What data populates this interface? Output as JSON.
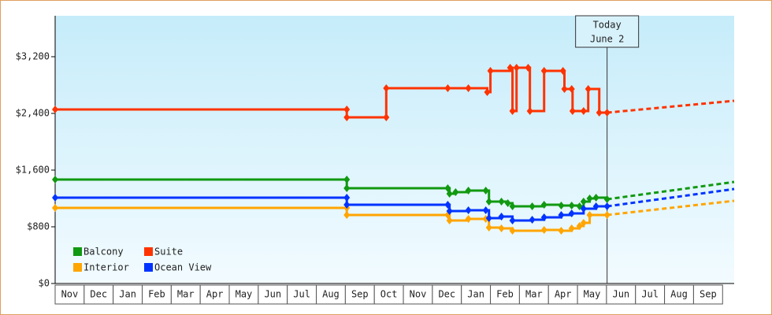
{
  "chart_data": {
    "type": "step-line",
    "xlim": [
      0,
      23.4
    ],
    "xticks": [
      {
        "value": 0.5,
        "label": "Nov"
      },
      {
        "value": 1.5,
        "label": "Dec"
      },
      {
        "value": 2.5,
        "label": "Jan"
      },
      {
        "value": 3.5,
        "label": "Feb"
      },
      {
        "value": 4.5,
        "label": "Mar"
      },
      {
        "value": 5.5,
        "label": "Apr"
      },
      {
        "value": 6.5,
        "label": "May"
      },
      {
        "value": 7.5,
        "label": "Jun"
      },
      {
        "value": 8.5,
        "label": "Jul"
      },
      {
        "value": 9.5,
        "label": "Aug"
      },
      {
        "value": 10.5,
        "label": "Sep"
      },
      {
        "value": 11.5,
        "label": "Oct"
      },
      {
        "value": 12.5,
        "label": "Nov"
      },
      {
        "value": 13.5,
        "label": "Dec"
      },
      {
        "value": 14.5,
        "label": "Jan"
      },
      {
        "value": 15.5,
        "label": "Feb"
      },
      {
        "value": 16.5,
        "label": "Mar"
      },
      {
        "value": 17.5,
        "label": "Apr"
      },
      {
        "value": 18.5,
        "label": "May"
      },
      {
        "value": 19.5,
        "label": "Jun"
      },
      {
        "value": 20.5,
        "label": "Jul"
      },
      {
        "value": 21.5,
        "label": "Aug"
      },
      {
        "value": 22.5,
        "label": "Sep"
      }
    ],
    "ylim": [
      0,
      3778
    ],
    "yticks": [
      {
        "value": 0,
        "label": "$0"
      },
      {
        "value": 800,
        "label": "$800"
      },
      {
        "value": 1600,
        "label": "$1,600"
      },
      {
        "value": 2400,
        "label": "$2,400"
      },
      {
        "value": 3200,
        "label": "$3,200"
      }
    ],
    "annotation": {
      "x": 19.02,
      "lines": [
        "Today",
        "June 2"
      ]
    },
    "series": [
      {
        "name": "Balcony",
        "color": "#119911",
        "x": [
          0,
          10.05,
          10.05,
          13.53,
          13.59,
          13.8,
          14.24,
          14.84,
          14.95,
          15.38,
          15.6,
          15.76,
          16.44,
          16.85,
          17.44,
          17.8,
          18.07,
          18.21,
          18.42,
          18.64,
          19.02
        ],
        "values": [
          1467,
          1467,
          1344,
          1344,
          1267,
          1289,
          1311,
          1311,
          1156,
          1156,
          1133,
          1089,
          1089,
          1111,
          1100,
          1100,
          1089,
          1156,
          1200,
          1211,
          1189
        ],
        "forecast": {
          "x": [
            19.02,
            23.4
          ],
          "values": [
            1189,
            1433
          ]
        }
      },
      {
        "name": "Suite",
        "color": "#ff3300",
        "x": [
          0,
          10.05,
          10.05,
          11.41,
          11.41,
          13.53,
          14.24,
          14.89,
          15.0,
          15.68,
          15.76,
          15.9,
          16.3,
          16.36,
          16.85,
          17.5,
          17.55,
          17.8,
          17.83,
          18.21,
          18.37,
          18.75,
          19.02
        ],
        "values": [
          2456,
          2456,
          2344,
          2344,
          2756,
          2756,
          2756,
          2700,
          3000,
          3044,
          2433,
          3044,
          3044,
          2433,
          3000,
          3000,
          2744,
          2744,
          2433,
          2433,
          2744,
          2411,
          2411
        ],
        "forecast": {
          "x": [
            19.02,
            23.4
          ],
          "values": [
            2411,
            2578
          ]
        }
      },
      {
        "name": "Interior",
        "color": "#ffa500",
        "x": [
          0,
          10.05,
          10.05,
          13.53,
          13.59,
          14.24,
          14.84,
          14.95,
          15.38,
          15.76,
          16.85,
          17.44,
          17.8,
          18.07,
          18.21,
          18.42,
          19.02
        ],
        "values": [
          1067,
          1067,
          967,
          967,
          889,
          911,
          911,
          789,
          778,
          744,
          756,
          744,
          778,
          811,
          856,
          967,
          967
        ],
        "forecast": {
          "x": [
            19.02,
            23.4
          ],
          "values": [
            967,
            1167
          ]
        }
      },
      {
        "name": "Ocean View",
        "color": "#0033ff",
        "x": [
          0,
          10.05,
          10.05,
          13.53,
          13.59,
          14.24,
          14.84,
          14.95,
          15.38,
          15.76,
          16.44,
          16.85,
          17.44,
          17.8,
          18.21,
          18.64,
          19.02
        ],
        "values": [
          1211,
          1211,
          1111,
          1111,
          1022,
          1033,
          1033,
          922,
          944,
          889,
          900,
          933,
          967,
          989,
          1056,
          1089,
          1089
        ],
        "forecast": {
          "x": [
            19.02,
            23.4
          ],
          "values": [
            1089,
            1333
          ]
        }
      }
    ]
  }
}
